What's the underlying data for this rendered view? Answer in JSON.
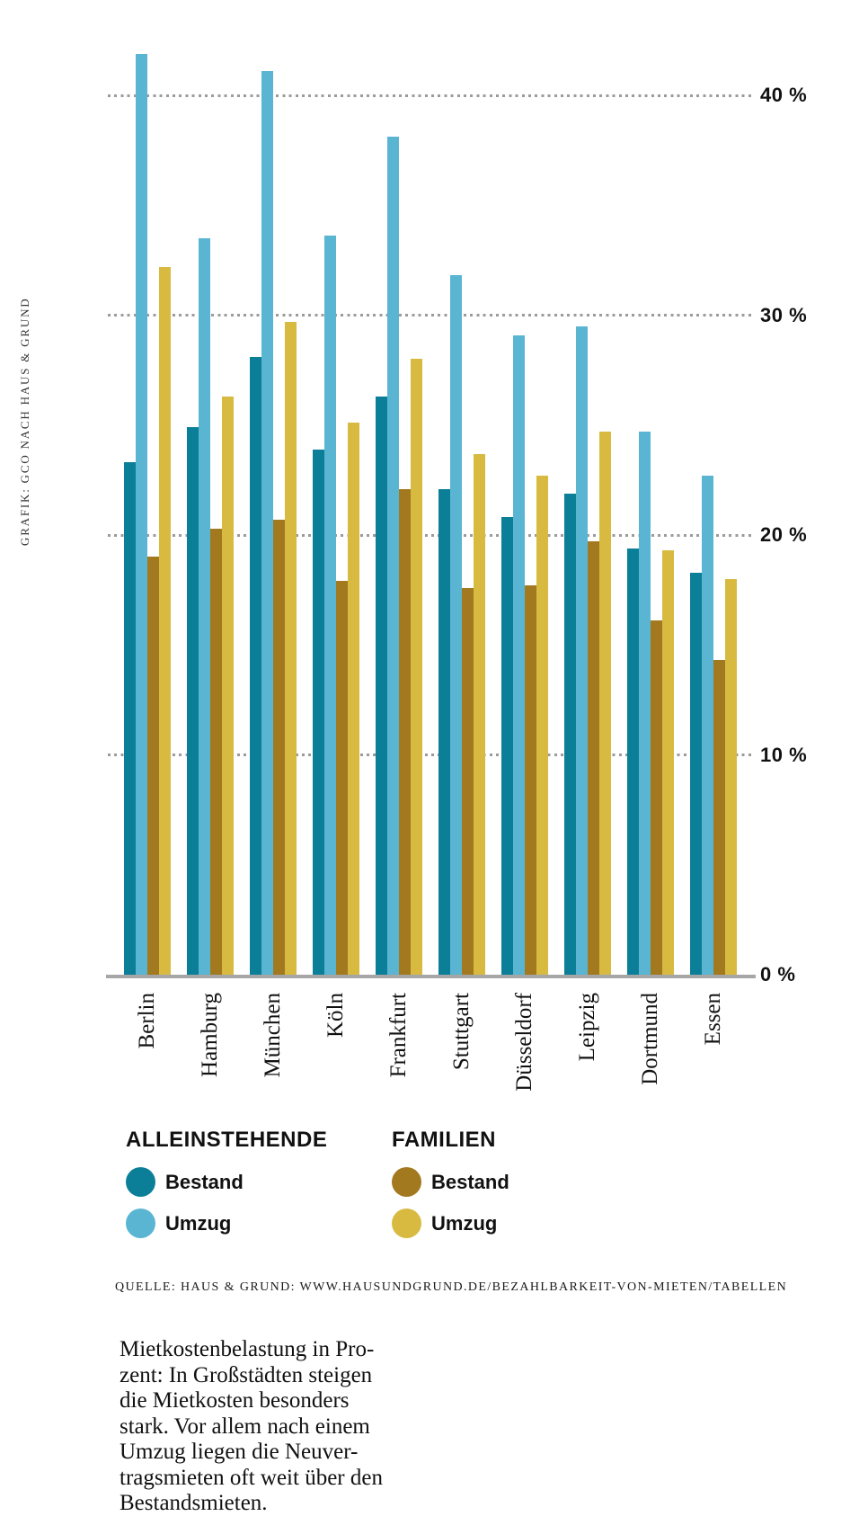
{
  "credit": "GRAFIK: GCO NACH HAUS & GRUND",
  "chart_data": {
    "type": "bar",
    "title": "",
    "xlabel": "",
    "ylabel": "",
    "unit": "%",
    "categories": [
      "Berlin",
      "Hamburg",
      "München",
      "Köln",
      "Frankfurt",
      "Stuttgart",
      "Düsseldorf",
      "Leipzig",
      "Dortmund",
      "Essen"
    ],
    "series": [
      {
        "name": "Alleinstehende Bestand",
        "group": "ALLEINSTEHENDE",
        "label": "Bestand",
        "color": "#0b7f98",
        "values": [
          23.3,
          24.9,
          28.1,
          23.9,
          26.3,
          22.1,
          20.8,
          21.9,
          19.4,
          18.3
        ]
      },
      {
        "name": "Alleinstehende Umzug",
        "group": "ALLEINSTEHENDE",
        "label": "Umzug",
        "color": "#5ab5d3",
        "values": [
          41.9,
          33.5,
          41.1,
          33.6,
          38.1,
          31.8,
          29.1,
          29.5,
          24.7,
          22.7
        ]
      },
      {
        "name": "Familien Bestand",
        "group": "FAMILIEN",
        "label": "Bestand",
        "color": "#a2791f",
        "values": [
          19.0,
          20.3,
          20.7,
          17.9,
          22.1,
          17.6,
          17.7,
          19.7,
          16.1,
          14.3
        ]
      },
      {
        "name": "Familien Umzug",
        "group": "FAMILIEN",
        "label": "Umzug",
        "color": "#d8ba41",
        "values": [
          32.2,
          26.3,
          29.7,
          25.1,
          28.0,
          23.7,
          22.7,
          24.7,
          19.3,
          18.0
        ]
      }
    ],
    "yticks": [
      0,
      10,
      20,
      30,
      40
    ],
    "ytick_labels": [
      "0 %",
      "10 %",
      "20 %",
      "30 %",
      "40 %"
    ],
    "ylim": [
      0,
      44
    ],
    "grid": "dotted-horizontal",
    "legend_position": "below"
  },
  "legend": {
    "groups": [
      {
        "title": "ALLEINSTEHENDE",
        "items": [
          {
            "label": "Bestand",
            "color": "#0b7f98"
          },
          {
            "label": "Umzug",
            "color": "#5ab5d3"
          }
        ]
      },
      {
        "title": "FAMILIEN",
        "items": [
          {
            "label": "Bestand",
            "color": "#a2791f"
          },
          {
            "label": "Umzug",
            "color": "#d8ba41"
          }
        ]
      }
    ]
  },
  "source": "QUELLE: HAUS & GRUND: WWW.HAUSUNDGRUND.DE/BEZAHLBARKEIT-VON-MIETEN/TABELLEN",
  "caption": "Mietkostenbelastung in Pro-\nzent: In Großstädten steigen\ndie Mietkosten besonders\nstark. Vor allem nach einem\nUmzug liegen die Neuver-\ntragsmieten oft weit über den\nBestandsmieten."
}
